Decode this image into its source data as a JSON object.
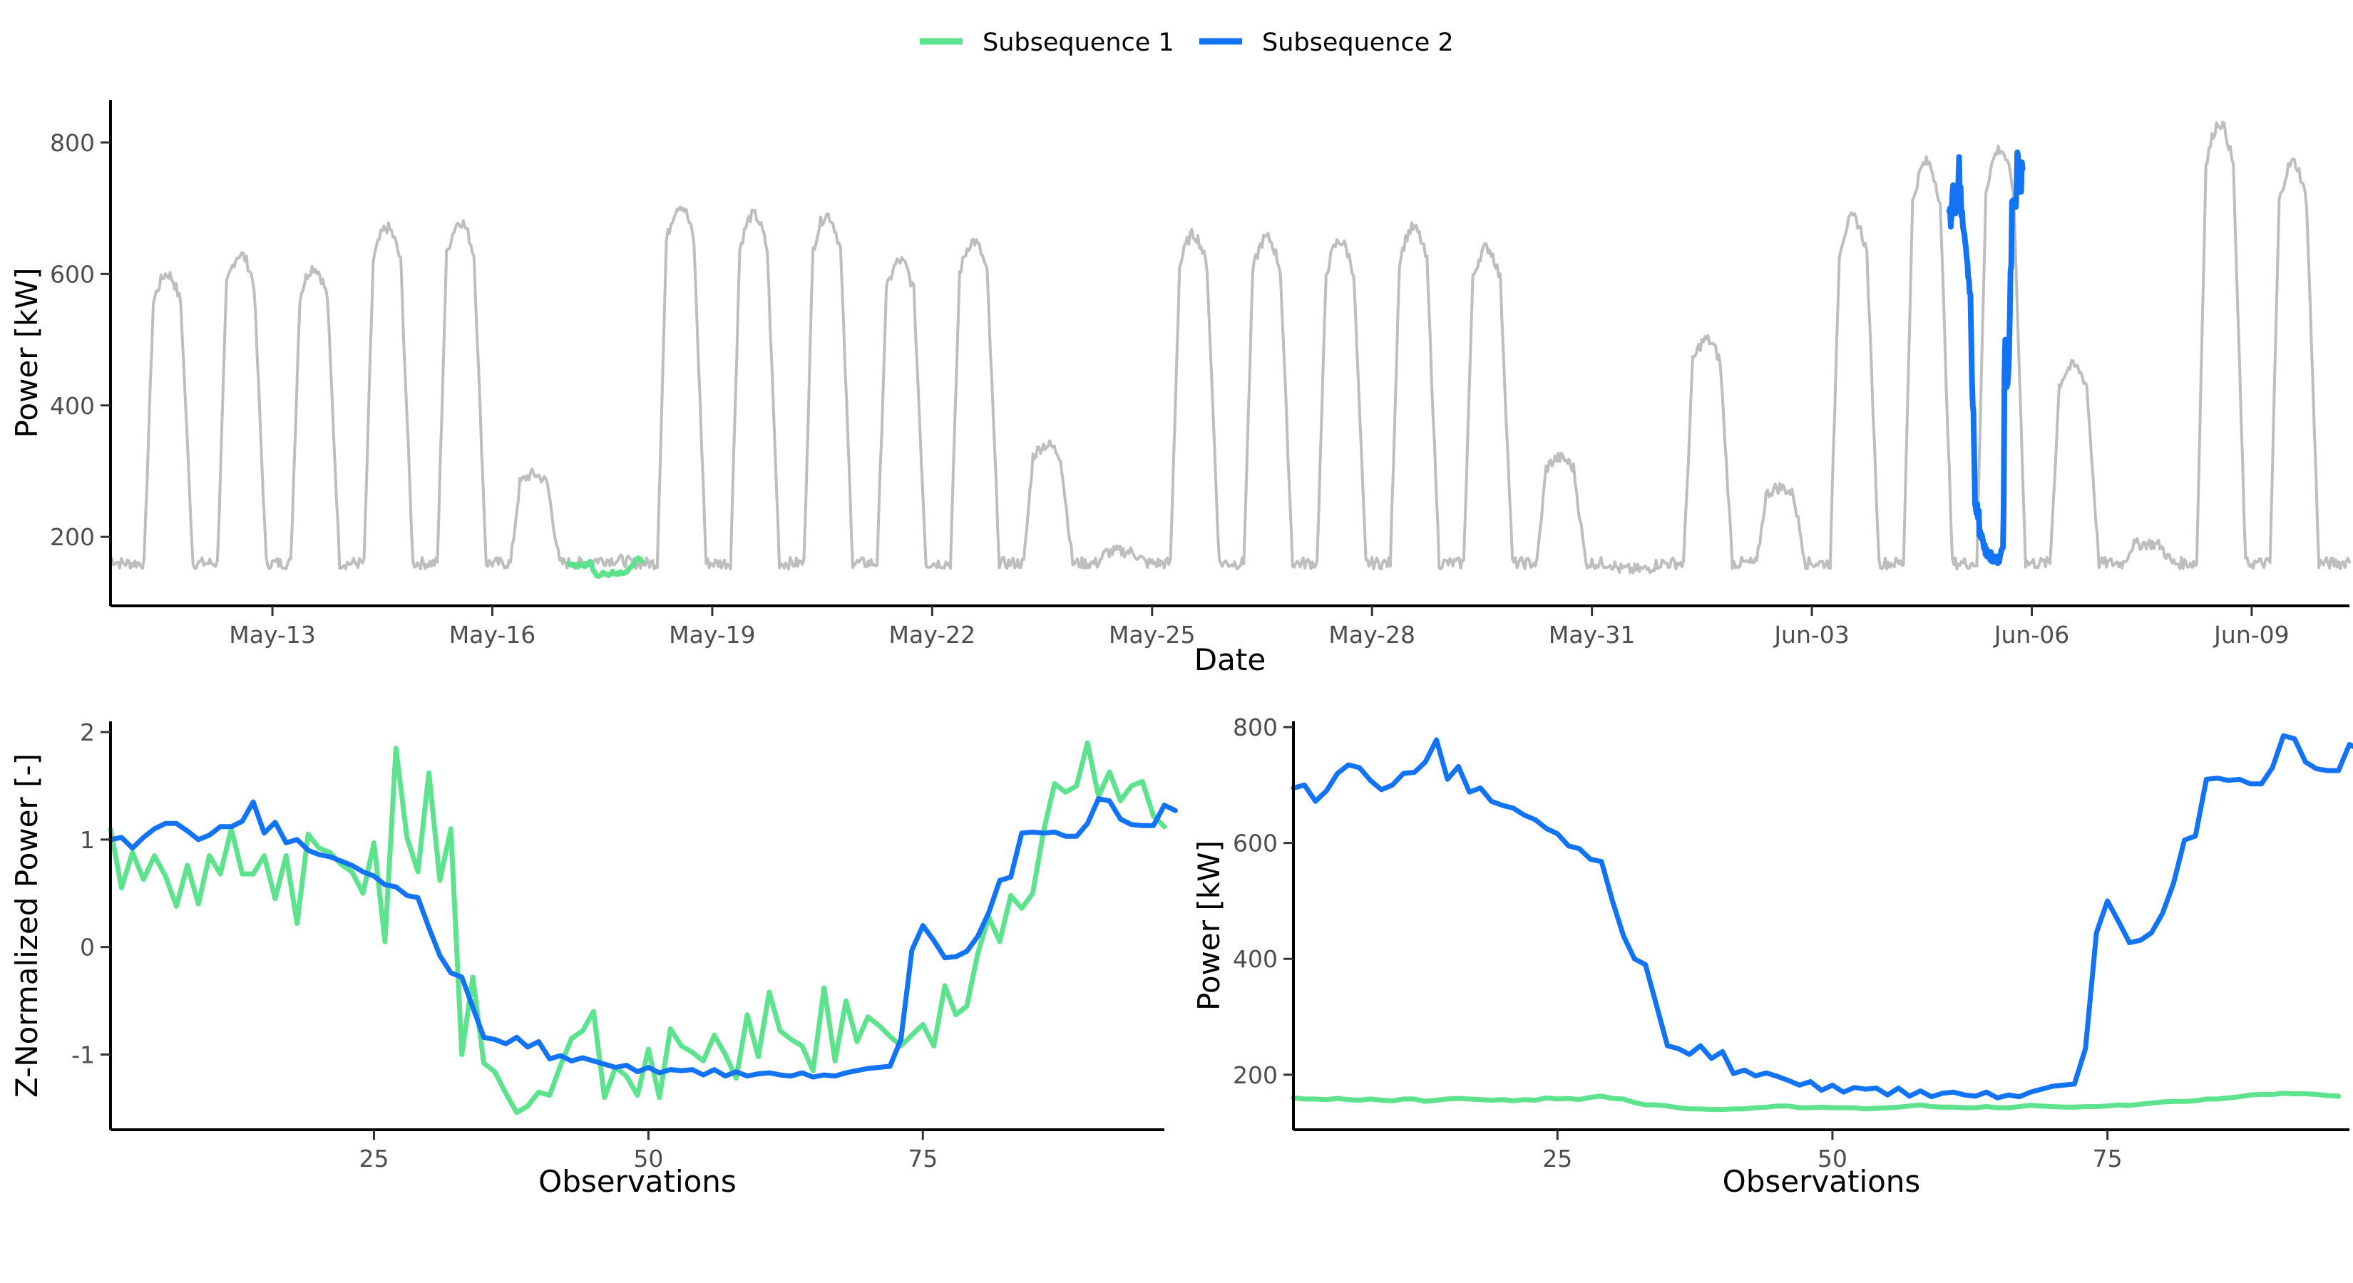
{
  "legend": {
    "items": [
      {
        "label": "Subsequence 1",
        "color": "#5de38e"
      },
      {
        "label": "Subsequence 2",
        "color": "#1273f5"
      }
    ]
  },
  "chart_data": [
    {
      "id": "top",
      "type": "line",
      "title": "",
      "xlabel": "Date",
      "ylabel": "Power [kW]",
      "xlim": [
        "2024-05-10T19:00",
        "2024-06-10T08:00"
      ],
      "ylim": [
        95,
        865
      ],
      "x_ticks": [
        "2024-05-13",
        "2024-05-16",
        "2024-05-19",
        "2024-05-22",
        "2024-05-25",
        "2024-05-28",
        "2024-05-31",
        "2024-06-03",
        "2024-06-06",
        "2024-06-09"
      ],
      "x_tick_labels": [
        "May-13",
        "May-16",
        "May-19",
        "May-22",
        "May-25",
        "May-28",
        "May-31",
        "Jun-03",
        "Jun-06",
        "Jun-09"
      ],
      "y_ticks": [
        200,
        400,
        600,
        800
      ],
      "background_color": "#bebebe",
      "daily_peaks_kw": [
        {
          "date": "2024-05-11",
          "peak": 600
        },
        {
          "date": "2024-05-12",
          "peak": 630
        },
        {
          "date": "2024-05-13",
          "peak": 610
        },
        {
          "date": "2024-05-14",
          "peak": 670
        },
        {
          "date": "2024-05-15",
          "peak": 680
        },
        {
          "date": "2024-05-16",
          "peak": 295
        },
        {
          "date": "2024-05-17",
          "peak": 165
        },
        {
          "date": "2024-05-18",
          "peak": 705
        },
        {
          "date": "2024-05-19",
          "peak": 690
        },
        {
          "date": "2024-05-20",
          "peak": 690
        },
        {
          "date": "2024-05-21",
          "peak": 620
        },
        {
          "date": "2024-05-22",
          "peak": 650
        },
        {
          "date": "2024-05-23",
          "peak": 340
        },
        {
          "date": "2024-05-24",
          "peak": 178
        },
        {
          "date": "2024-05-25",
          "peak": 660
        },
        {
          "date": "2024-05-26",
          "peak": 655
        },
        {
          "date": "2024-05-27",
          "peak": 650
        },
        {
          "date": "2024-05-28",
          "peak": 670
        },
        {
          "date": "2024-05-29",
          "peak": 640
        },
        {
          "date": "2024-05-30",
          "peak": 320
        },
        {
          "date": "2024-05-31",
          "peak": 150
        },
        {
          "date": "2024-06-01",
          "peak": 500
        },
        {
          "date": "2024-06-02",
          "peak": 275
        },
        {
          "date": "2024-06-03",
          "peak": 685
        },
        {
          "date": "2024-06-04",
          "peak": 770
        },
        {
          "date": "2024-06-05",
          "peak": 790
        },
        {
          "date": "2024-06-06",
          "peak": 460
        },
        {
          "date": "2024-06-07",
          "peak": 190
        },
        {
          "date": "2024-06-08",
          "peak": 830
        },
        {
          "date": "2024-06-09",
          "peak": 770
        }
      ],
      "series": [
        {
          "name": "Subsequence 1",
          "color": "#5de38e",
          "x_start": "2024-05-17T01:00",
          "x_end": "2024-05-18T01:00",
          "values": [
            160,
            158,
            158,
            157,
            159,
            157,
            156,
            158,
            156,
            155,
            158,
            158,
            154,
            156,
            158,
            159,
            158,
            157,
            156,
            157,
            155,
            157,
            156,
            160,
            158,
            159,
            157,
            161,
            163,
            159,
            158,
            152,
            148,
            148,
            146,
            143,
            141,
            141,
            140,
            140,
            141,
            141,
            143,
            144,
            146,
            146,
            143,
            143,
            144,
            143,
            143,
            143,
            141,
            142,
            143,
            144,
            146,
            148,
            145,
            144,
            144,
            143,
            143,
            145,
            143,
            143,
            145,
            147,
            146,
            145,
            144,
            144,
            145,
            145,
            146,
            148,
            147,
            149,
            151,
            153,
            154,
            154,
            155,
            158,
            158,
            160,
            162,
            165,
            166,
            166,
            168,
            167,
            167,
            166,
            164,
            163
          ]
        },
        {
          "name": "Subsequence 2",
          "color": "#1273f5",
          "x_start": "2024-06-04T21:00",
          "x_end": "2024-06-05T21:00",
          "values": [
            695,
            700,
            672,
            690,
            720,
            735,
            730,
            708,
            692,
            700,
            720,
            722,
            740,
            778,
            710,
            732,
            688,
            695,
            672,
            665,
            660,
            648,
            640,
            625,
            616,
            595,
            590,
            572,
            568,
            500,
            440,
            400,
            390,
            320,
            250,
            245,
            235,
            250,
            228,
            240,
            202,
            208,
            198,
            203,
            197,
            190,
            182,
            188,
            173,
            182,
            170,
            178,
            175,
            177,
            165,
            177,
            163,
            172,
            162,
            168,
            170,
            165,
            163,
            170,
            160,
            165,
            162,
            170,
            175,
            180,
            182,
            184,
            245,
            445,
            500,
            465,
            428,
            432,
            445,
            478,
            530,
            605,
            612,
            710,
            712,
            708,
            710,
            702,
            702,
            730,
            785,
            780,
            740,
            728,
            725,
            725,
            770,
            760
          ]
        }
      ]
    },
    {
      "id": "bottom-left",
      "type": "line",
      "title": "",
      "xlabel": "Observations",
      "ylabel": "Z-Normalized Power [-]",
      "xlim": [
        1,
        97
      ],
      "ylim": [
        -1.7,
        2.1
      ],
      "x_ticks": [
        25,
        50,
        75
      ],
      "y_ticks": [
        -1,
        0,
        1,
        2
      ],
      "series": [
        {
          "name": "Subsequence 1",
          "color": "#5de38e",
          "values": [
            1.1,
            0.55,
            0.88,
            0.63,
            0.85,
            0.66,
            0.38,
            0.76,
            0.4,
            0.85,
            0.68,
            1.1,
            0.68,
            0.68,
            0.85,
            0.45,
            0.85,
            0.22,
            1.05,
            0.92,
            0.88,
            0.77,
            0.7,
            0.5,
            0.97,
            0.05,
            1.85,
            1.02,
            0.7,
            1.62,
            0.62,
            1.1,
            -1.0,
            -0.28,
            -1.08,
            -1.16,
            -1.36,
            -1.54,
            -1.48,
            -1.35,
            -1.38,
            -1.1,
            -0.85,
            -0.78,
            -0.6,
            -1.4,
            -1.12,
            -1.2,
            -1.38,
            -0.95,
            -1.4,
            -0.76,
            -0.92,
            -0.98,
            -1.06,
            -0.82,
            -1.0,
            -1.22,
            -0.63,
            -1.02,
            -0.42,
            -0.78,
            -0.86,
            -0.92,
            -1.15,
            -0.38,
            -1.06,
            -0.5,
            -0.88,
            -0.65,
            -0.73,
            -0.83,
            -0.92,
            -0.82,
            -0.72,
            -0.92,
            -0.36,
            -0.63,
            -0.55,
            -0.06,
            0.28,
            0.05,
            0.48,
            0.36,
            0.5,
            1.08,
            1.52,
            1.44,
            1.5,
            1.9,
            1.4,
            1.63,
            1.36,
            1.5,
            1.54,
            1.22,
            1.12
          ]
        },
        {
          "name": "Subsequence 2",
          "color": "#1273f5",
          "values": [
            1.0,
            1.02,
            0.92,
            1.02,
            1.1,
            1.15,
            1.15,
            1.08,
            1.0,
            1.04,
            1.12,
            1.12,
            1.17,
            1.35,
            1.06,
            1.16,
            0.97,
            1.0,
            0.9,
            0.86,
            0.84,
            0.8,
            0.76,
            0.7,
            0.66,
            0.58,
            0.56,
            0.48,
            0.46,
            0.18,
            -0.08,
            -0.24,
            -0.28,
            -0.56,
            -0.84,
            -0.86,
            -0.9,
            -0.84,
            -0.93,
            -0.88,
            -1.04,
            -1.01,
            -1.06,
            -1.03,
            -1.06,
            -1.09,
            -1.12,
            -1.1,
            -1.16,
            -1.12,
            -1.17,
            -1.14,
            -1.15,
            -1.14,
            -1.19,
            -1.14,
            -1.2,
            -1.16,
            -1.2,
            -1.18,
            -1.17,
            -1.19,
            -1.2,
            -1.17,
            -1.21,
            -1.19,
            -1.2,
            -1.17,
            -1.15,
            -1.13,
            -1.12,
            -1.11,
            -0.86,
            -0.03,
            0.2,
            0.06,
            -0.1,
            -0.09,
            -0.04,
            0.1,
            0.32,
            0.62,
            0.65,
            1.06,
            1.07,
            1.06,
            1.07,
            1.03,
            1.03,
            1.15,
            1.38,
            1.36,
            1.19,
            1.14,
            1.13,
            1.13,
            1.32,
            1.27
          ]
        }
      ]
    },
    {
      "id": "bottom-right",
      "type": "line",
      "title": "",
      "xlabel": "Observations",
      "ylabel": "Power [kW]",
      "xlim": [
        1,
        97
      ],
      "ylim": [
        105,
        810
      ],
      "x_ticks": [
        25,
        50,
        75
      ],
      "y_ticks": [
        200,
        400,
        600,
        800
      ],
      "series": [
        {
          "name": "Subsequence 1",
          "color": "#5de38e",
          "ref": "top.series.0.values"
        },
        {
          "name": "Subsequence 2",
          "color": "#1273f5",
          "ref": "top.series.1.values"
        }
      ]
    }
  ]
}
